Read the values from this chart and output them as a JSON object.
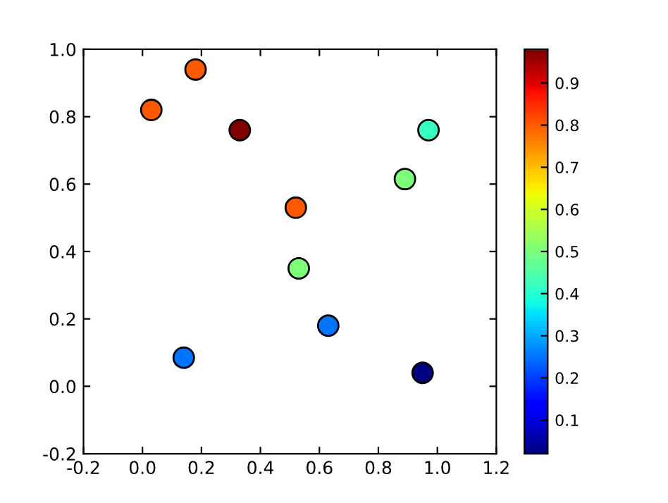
{
  "chart_data": {
    "type": "scatter",
    "x": [
      0.18,
      0.03,
      0.33,
      0.52,
      0.53,
      0.63,
      0.14,
      0.95,
      0.89,
      0.97
    ],
    "values": [
      0.94,
      0.82,
      0.76,
      0.53,
      0.35,
      0.18,
      0.085,
      0.04,
      0.615,
      0.76
    ],
    "cvalues": [
      0.8,
      0.8,
      0.98,
      0.8,
      0.5,
      0.25,
      0.25,
      0.02,
      0.5,
      0.42
    ],
    "xlim": [
      -0.2,
      1.2
    ],
    "xticks": [
      -0.2,
      {
        "value": 0,
        "label": "0.0"
      },
      0.2,
      0.4,
      0.6,
      0.8,
      {
        "value": 1,
        "label": "1.0"
      },
      1.2
    ],
    "ylim": [
      -0.2,
      1.0
    ],
    "yticks": [
      -0.2,
      {
        "value": 0,
        "label": "0.0"
      },
      0.2,
      0.4,
      0.6,
      0.8,
      {
        "value": 1,
        "label": "1.0"
      }
    ],
    "clim": [
      0.02,
      0.98
    ],
    "cticks": [
      0.1,
      0.2,
      0.3,
      0.4,
      0.5,
      0.6,
      0.7,
      0.8,
      0.9
    ],
    "marker": "circle",
    "grid": false,
    "legend": false
  }
}
